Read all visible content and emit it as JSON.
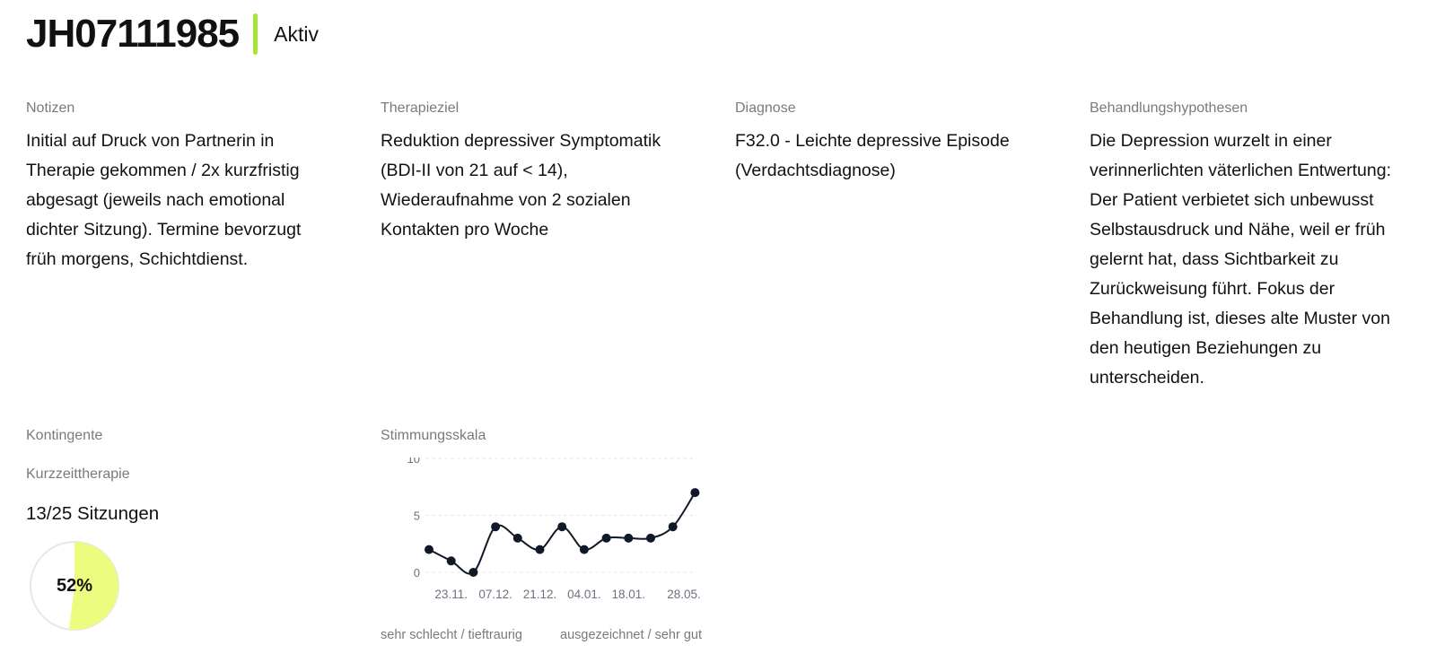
{
  "header": {
    "patient_id": "JH07111985",
    "status": "Aktiv",
    "status_color": "#a3e635"
  },
  "notes": {
    "label": "Notizen",
    "text": "Initial auf Druck von Partnerin in Therapie gekommen / 2x kurzfristig abgesagt (jeweils nach emotional dichter Sitzung). Termine bevorzugt früh morgens, Schichtdienst."
  },
  "goal": {
    "label": "Therapieziel",
    "text": "Reduktion depressiver Symptomatik (BDI-II von 21 auf < 14), Wiederaufnahme von 2 sozialen Kontakten pro Woche"
  },
  "diagnosis": {
    "label": "Diagnose",
    "text": "F32.0 - Leichte depressive Episode (Verdachtsdiagnose)"
  },
  "hypotheses": {
    "label": "Behandlungshypothesen",
    "text": "Die Depression wurzelt in einer verinnerlichten väterlichen Entwertung: Der Patient verbietet sich unbewusst Selbstausdruck und Nähe, weil er früh gelernt hat, dass Sichtbarkeit zu Zurückweisung führt. Fokus der Behandlung ist, dieses alte Muster von den heutigen Beziehungen zu unterscheiden."
  },
  "contingent": {
    "label": "Kontingente",
    "type": "Kurzzeittherapie",
    "sessions": "13/25 Sitzungen",
    "percent_label": "52%",
    "percent": 52,
    "fill_color": "#ecfc7e"
  },
  "mood": {
    "label": "Stimmungsskala",
    "low_label": "sehr schlecht / tieftraurig",
    "high_label": "ausgezeichnet / sehr gut"
  },
  "chart_data": {
    "type": "line",
    "ylim": [
      0,
      10
    ],
    "yticks": [
      "0",
      "5",
      "10"
    ],
    "x_tick_labels": [
      "23.11.",
      "07.12.",
      "21.12.",
      "04.01.",
      "18.01.",
      "28.05."
    ],
    "x_tick_positions": [
      1,
      3,
      5,
      7,
      9,
      11.5
    ],
    "values": [
      2,
      1,
      0,
      4,
      3,
      2,
      4,
      2,
      3,
      3,
      3,
      4,
      7
    ],
    "line_color": "#111827",
    "grid": true
  }
}
